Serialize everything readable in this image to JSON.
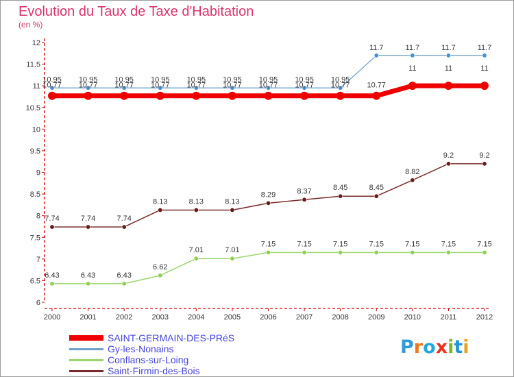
{
  "title": "Evolution du Taux de Taxe d'Habitation",
  "subtitle": "(en %)",
  "logo": {
    "text": "Proxiti",
    "letter_colors": [
      "#3399dd",
      "#f07818",
      "#22a8dd",
      "#e8341c",
      "#7ab820",
      "#2296d6",
      "#e8a020"
    ]
  },
  "chart_data": {
    "type": "line",
    "x": [
      "2000",
      "2001",
      "2002",
      "2003",
      "2004",
      "2005",
      "2006",
      "2007",
      "2008",
      "2009",
      "2010",
      "2011",
      "2012"
    ],
    "ylim": [
      6,
      12
    ],
    "yticks": [
      "6",
      "6.5",
      "7",
      "7.5",
      "8",
      "8.5",
      "9",
      "9.5",
      "10",
      "10.5",
      "11",
      "11.5",
      "12"
    ],
    "grid": false,
    "legend_position": "bottom-left",
    "series": [
      {
        "name": "SAINT-GERMAIN-DES-PRéS",
        "color": "#ee0000",
        "values": [
          10.77,
          10.77,
          10.77,
          10.77,
          10.77,
          10.77,
          10.77,
          10.77,
          10.77,
          10.77,
          11,
          11,
          11
        ],
        "labels": [
          "10.77",
          "10.77",
          "10.77",
          "10.77",
          "10.77",
          "10.77",
          "10.77",
          "10.77",
          "10.77",
          "10.77",
          "11",
          "11",
          "11"
        ]
      },
      {
        "name": "Gy-les-Nonains",
        "color": "#6fa0cc",
        "values": [
          10.95,
          10.95,
          10.95,
          10.95,
          10.95,
          10.95,
          10.95,
          10.95,
          10.95,
          11.7,
          11.7,
          11.7,
          11.7
        ],
        "labels": [
          "10.95",
          "10.95",
          "10.95",
          "10.95",
          "10.95",
          "10.95",
          "10.95",
          "10.95",
          "10.95",
          "11.7",
          "11.7",
          "11.7",
          "11.7"
        ]
      },
      {
        "name": "Conflans-sur-Loing",
        "color": "#9ad66a",
        "values": [
          6.43,
          6.43,
          6.43,
          6.62,
          7.01,
          7.01,
          7.15,
          7.15,
          7.15,
          7.15,
          7.15,
          7.15,
          7.15
        ],
        "labels": [
          "6.43",
          "6.43",
          "6.43",
          "6.62",
          "7.01",
          "7.01",
          "7.15",
          "7.15",
          "7.15",
          "7.15",
          "7.15",
          "7.15",
          "7.15"
        ]
      },
      {
        "name": "Saint-Firmin-des-Bois",
        "color": "#7a2a2a",
        "values": [
          7.74,
          7.74,
          7.74,
          8.13,
          8.13,
          8.13,
          8.29,
          8.37,
          8.45,
          8.45,
          8.82,
          9.2,
          9.2
        ],
        "labels": [
          "7.74",
          "7.74",
          "7.74",
          "8.13",
          "8.13",
          "8.13",
          "8.29",
          "8.37",
          "8.45",
          "8.45",
          "8.82",
          "9.2",
          "9.2"
        ]
      }
    ]
  }
}
